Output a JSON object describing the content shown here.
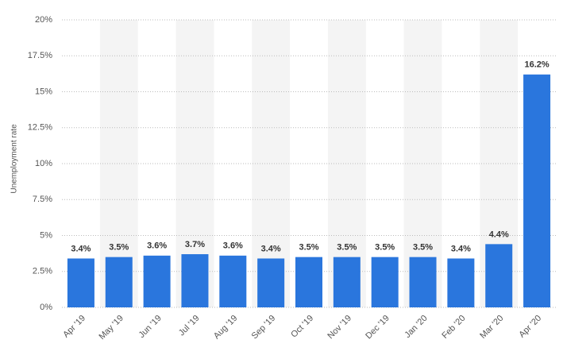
{
  "chart_data": {
    "type": "bar",
    "y_label": "Unemployment rate",
    "categories": [
      "Apr '19",
      "May '19",
      "Jun '19",
      "Jul '19",
      "Aug '19",
      "Sep '19",
      "Oct '19",
      "Nov '19",
      "Dec '19",
      "Jan '20",
      "Feb '20",
      "Mar '20",
      "Apr '20"
    ],
    "values": [
      3.4,
      3.5,
      3.6,
      3.7,
      3.6,
      3.4,
      3.5,
      3.5,
      3.5,
      3.5,
      3.4,
      4.4,
      16.2
    ],
    "value_labels": [
      "3.4%",
      "3.5%",
      "3.6%",
      "3.7%",
      "3.6%",
      "3.4%",
      "3.5%",
      "3.5%",
      "3.5%",
      "3.5%",
      "3.4%",
      "4.4%",
      "16.2%"
    ],
    "color": "#2a76dd",
    "ylim": [
      0,
      20
    ],
    "yticks": [
      {
        "value": 0,
        "label": "0%"
      },
      {
        "value": 2.5,
        "label": "2.5%"
      },
      {
        "value": 5,
        "label": "5%"
      },
      {
        "value": 7.5,
        "label": "7.5%"
      },
      {
        "value": 10,
        "label": "10%"
      },
      {
        "value": 12.5,
        "label": "12.5%"
      },
      {
        "value": 15,
        "label": "15%"
      },
      {
        "value": 17.5,
        "label": "17.5%"
      },
      {
        "value": 20,
        "label": "20%"
      }
    ],
    "grid": true
  }
}
